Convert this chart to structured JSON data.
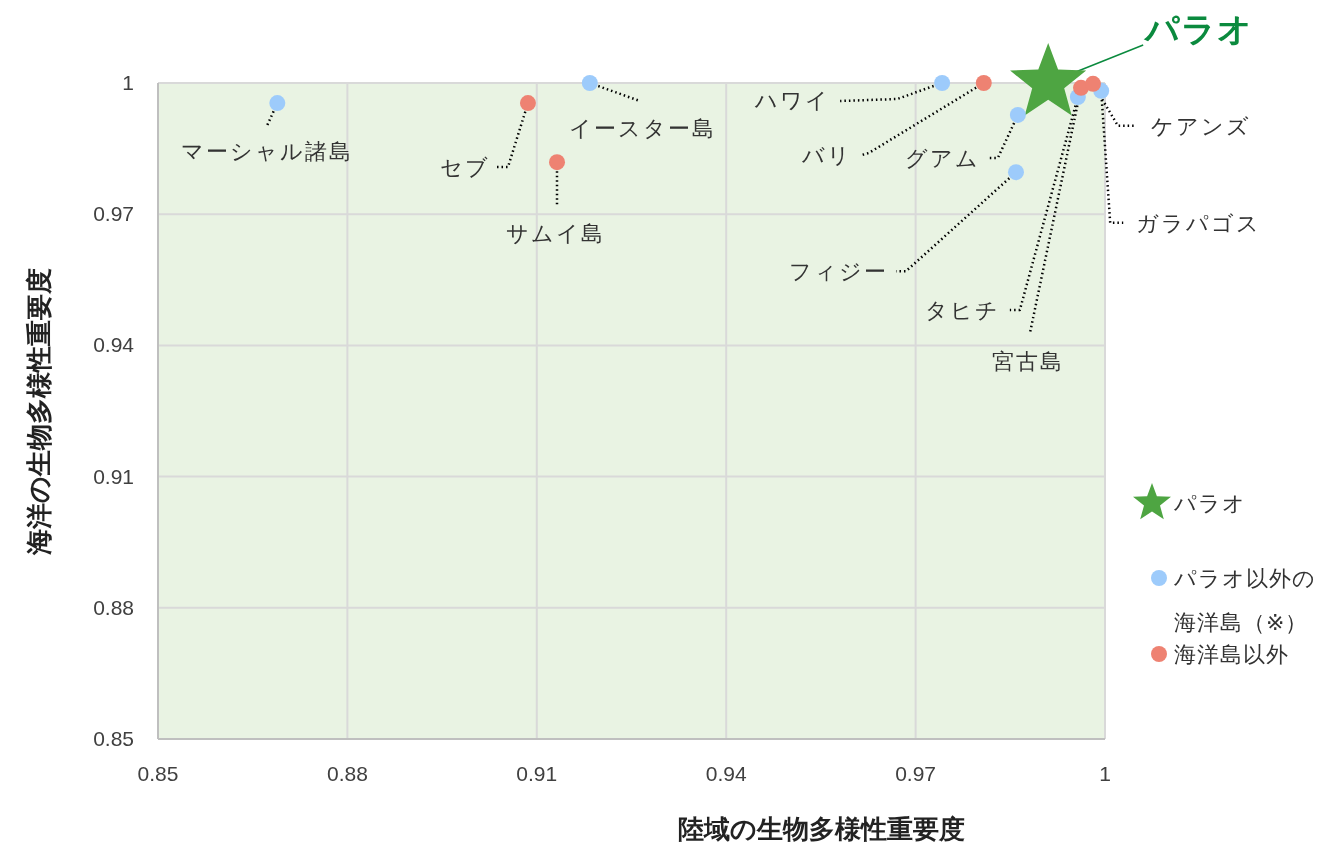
{
  "chart_data": {
    "type": "scatter",
    "xlabel": "陸域の生物多様性重要度",
    "ylabel": "海洋の生物多様性重要度",
    "xlim": [
      0.85,
      1
    ],
    "ylim": [
      0.85,
      1
    ],
    "xticks": [
      0.85,
      0.88,
      0.91,
      0.94,
      0.97,
      1
    ],
    "yticks": [
      0.85,
      0.88,
      0.91,
      0.94,
      0.97,
      1
    ],
    "grid": true,
    "legend": "right",
    "series": [
      {
        "name": "パラオ",
        "color": "#4ea542",
        "marker": "star",
        "x": [
          0.991
        ],
        "values": [
          1.0
        ]
      },
      {
        "name": "パラオ以外の海洋島（※）",
        "color": "#9dcbfb",
        "marker": "circle",
        "x": [
          0.8689,
          0.9184,
          0.9742,
          0.9862,
          0.9859,
          0.9957,
          0.9994
        ],
        "values": [
          0.9954,
          1.0,
          1.0,
          0.9927,
          0.9796,
          0.9968,
          0.9982
        ]
      },
      {
        "name": "海洋島以外",
        "color": "#ee8272",
        "marker": "circle",
        "x": [
          0.9086,
          0.9132,
          0.9808,
          0.9962,
          0.9981
        ],
        "values": [
          0.9954,
          0.9819,
          1.0,
          0.9989,
          0.9998
        ]
      }
    ],
    "annotations": [
      {
        "text": "マーシャル諸島",
        "x": 0.8689,
        "y": 0.9954
      },
      {
        "text": "イースター島",
        "x": 0.9184,
        "y": 1.0
      },
      {
        "text": "セブ",
        "x": 0.9086,
        "y": 0.9954
      },
      {
        "text": "サムイ島",
        "x": 0.9132,
        "y": 0.9819
      },
      {
        "text": "ハワイ",
        "x": 0.9742,
        "y": 1.0
      },
      {
        "text": "バリ",
        "x": 0.9808,
        "y": 1.0
      },
      {
        "text": "グアム",
        "x": 0.9862,
        "y": 0.9927
      },
      {
        "text": "フィジー",
        "x": 0.9859,
        "y": 0.9796
      },
      {
        "text": "タヒチ",
        "x": 0.9957,
        "y": 0.9968
      },
      {
        "text": "宮古島",
        "x": 0.9962,
        "y": 0.9989
      },
      {
        "text": "ケアンズ",
        "x": 0.9981,
        "y": 0.9998
      },
      {
        "text": "ガラパゴス",
        "x": 0.9994,
        "y": 0.9982
      },
      {
        "text": "パラオ",
        "x": 0.991,
        "y": 1.0
      }
    ]
  }
}
